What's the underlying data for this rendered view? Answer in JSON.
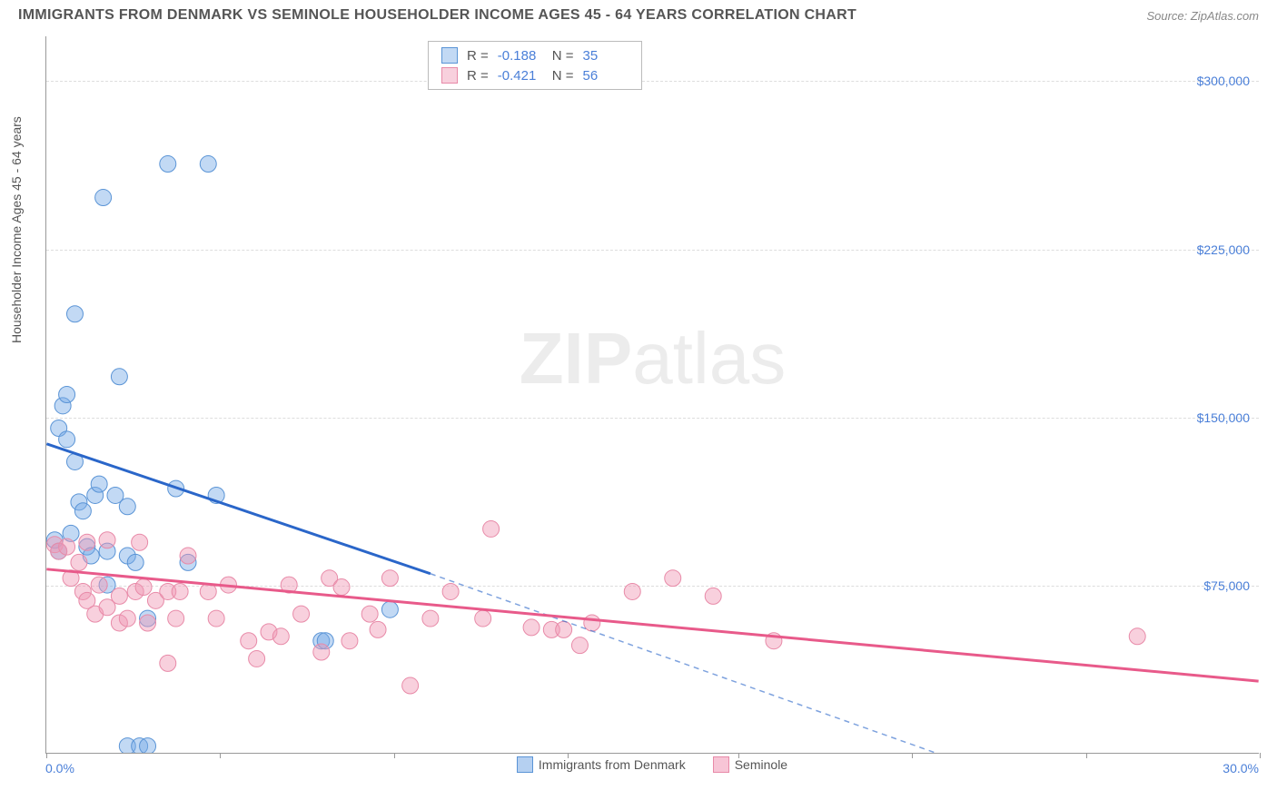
{
  "header": {
    "title": "IMMIGRANTS FROM DENMARK VS SEMINOLE HOUSEHOLDER INCOME AGES 45 - 64 YEARS CORRELATION CHART",
    "source": "Source: ZipAtlas.com"
  },
  "watermark": {
    "part1": "ZIP",
    "part2": "atlas"
  },
  "chart": {
    "type": "scatter",
    "xlim": [
      0,
      30
    ],
    "ylim": [
      0,
      320000
    ],
    "x_unit": "%",
    "y_unit": "$",
    "x_tick_min_label": "0.0%",
    "x_tick_max_label": "30.0%",
    "y_ticks": [
      75000,
      150000,
      225000,
      300000
    ],
    "y_tick_labels": [
      "$75,000",
      "$150,000",
      "$225,000",
      "$300,000"
    ],
    "y_axis_title": "Householder Income Ages 45 - 64 years",
    "grid_color": "#dddddd",
    "background_color": "#ffffff",
    "axis_color": "#999999",
    "tick_label_color": "#4a7fd8",
    "x_tick_positions_pct": [
      0,
      4.3,
      8.6,
      12.9,
      17.1,
      21.4,
      25.7,
      30
    ],
    "series": [
      {
        "name": "Immigrants from Denmark",
        "key": "denmark",
        "marker_fill": "rgba(120,170,230,0.45)",
        "marker_stroke": "#5a94d6",
        "line_color": "#2a66c9",
        "line_width": 3,
        "marker_radius": 9,
        "stats": {
          "R": "-0.188",
          "N": "35"
        },
        "regression": {
          "x1": 0,
          "y1": 138000,
          "x2": 9.5,
          "y2": 80000,
          "x2_dash": 22,
          "y2_dash": 0
        },
        "points": [
          [
            0.2,
            95000
          ],
          [
            0.3,
            90000
          ],
          [
            0.3,
            145000
          ],
          [
            0.4,
            155000
          ],
          [
            0.5,
            160000
          ],
          [
            0.5,
            140000
          ],
          [
            0.6,
            98000
          ],
          [
            0.7,
            196000
          ],
          [
            0.7,
            130000
          ],
          [
            0.8,
            112000
          ],
          [
            0.9,
            108000
          ],
          [
            1.0,
            92000
          ],
          [
            1.1,
            88000
          ],
          [
            1.2,
            115000
          ],
          [
            1.3,
            120000
          ],
          [
            1.4,
            248000
          ],
          [
            1.5,
            90000
          ],
          [
            1.5,
            75000
          ],
          [
            1.7,
            115000
          ],
          [
            1.8,
            168000
          ],
          [
            2.0,
            110000
          ],
          [
            2.0,
            88000
          ],
          [
            2.0,
            3000
          ],
          [
            2.3,
            3000
          ],
          [
            2.5,
            3000
          ],
          [
            2.2,
            85000
          ],
          [
            2.5,
            60000
          ],
          [
            3.0,
            263000
          ],
          [
            3.2,
            118000
          ],
          [
            3.5,
            85000
          ],
          [
            4.0,
            263000
          ],
          [
            4.2,
            115000
          ],
          [
            6.8,
            50000
          ],
          [
            6.9,
            50000
          ],
          [
            8.5,
            64000
          ]
        ]
      },
      {
        "name": "Seminole",
        "key": "seminole",
        "marker_fill": "rgba(240,150,180,0.45)",
        "marker_stroke": "#e88aa8",
        "line_color": "#e85a8a",
        "line_width": 3,
        "marker_radius": 9,
        "stats": {
          "R": "-0.421",
          "N": "56"
        },
        "regression": {
          "x1": 0,
          "y1": 82000,
          "x2": 30,
          "y2": 32000
        },
        "points": [
          [
            0.2,
            93000
          ],
          [
            0.3,
            90000
          ],
          [
            0.5,
            92000
          ],
          [
            0.6,
            78000
          ],
          [
            0.8,
            85000
          ],
          [
            0.9,
            72000
          ],
          [
            1.0,
            68000
          ],
          [
            1.0,
            94000
          ],
          [
            1.2,
            62000
          ],
          [
            1.3,
            75000
          ],
          [
            1.5,
            95000
          ],
          [
            1.5,
            65000
          ],
          [
            1.8,
            58000
          ],
          [
            1.8,
            70000
          ],
          [
            2.0,
            60000
          ],
          [
            2.2,
            72000
          ],
          [
            2.3,
            94000
          ],
          [
            2.4,
            74000
          ],
          [
            2.5,
            58000
          ],
          [
            2.7,
            68000
          ],
          [
            3.0,
            72000
          ],
          [
            3.0,
            40000
          ],
          [
            3.2,
            60000
          ],
          [
            3.3,
            72000
          ],
          [
            3.5,
            88000
          ],
          [
            4.0,
            72000
          ],
          [
            4.2,
            60000
          ],
          [
            4.5,
            75000
          ],
          [
            5.0,
            50000
          ],
          [
            5.2,
            42000
          ],
          [
            5.5,
            54000
          ],
          [
            5.8,
            52000
          ],
          [
            6.0,
            75000
          ],
          [
            6.3,
            62000
          ],
          [
            6.8,
            45000
          ],
          [
            7.0,
            78000
          ],
          [
            7.3,
            74000
          ],
          [
            7.5,
            50000
          ],
          [
            8.0,
            62000
          ],
          [
            8.2,
            55000
          ],
          [
            8.5,
            78000
          ],
          [
            9.0,
            30000
          ],
          [
            9.5,
            60000
          ],
          [
            10.0,
            72000
          ],
          [
            10.8,
            60000
          ],
          [
            11.0,
            100000
          ],
          [
            12.0,
            56000
          ],
          [
            12.5,
            55000
          ],
          [
            12.8,
            55000
          ],
          [
            13.2,
            48000
          ],
          [
            13.5,
            58000
          ],
          [
            14.5,
            72000
          ],
          [
            15.5,
            78000
          ],
          [
            16.5,
            70000
          ],
          [
            18.0,
            50000
          ],
          [
            27.0,
            52000
          ]
        ]
      }
    ],
    "bottom_legend": [
      {
        "label": "Immigrants from Denmark",
        "fill": "rgba(120,170,230,0.55)",
        "stroke": "#5a94d6"
      },
      {
        "label": "Seminole",
        "fill": "rgba(240,150,180,0.55)",
        "stroke": "#e88aa8"
      }
    ]
  }
}
